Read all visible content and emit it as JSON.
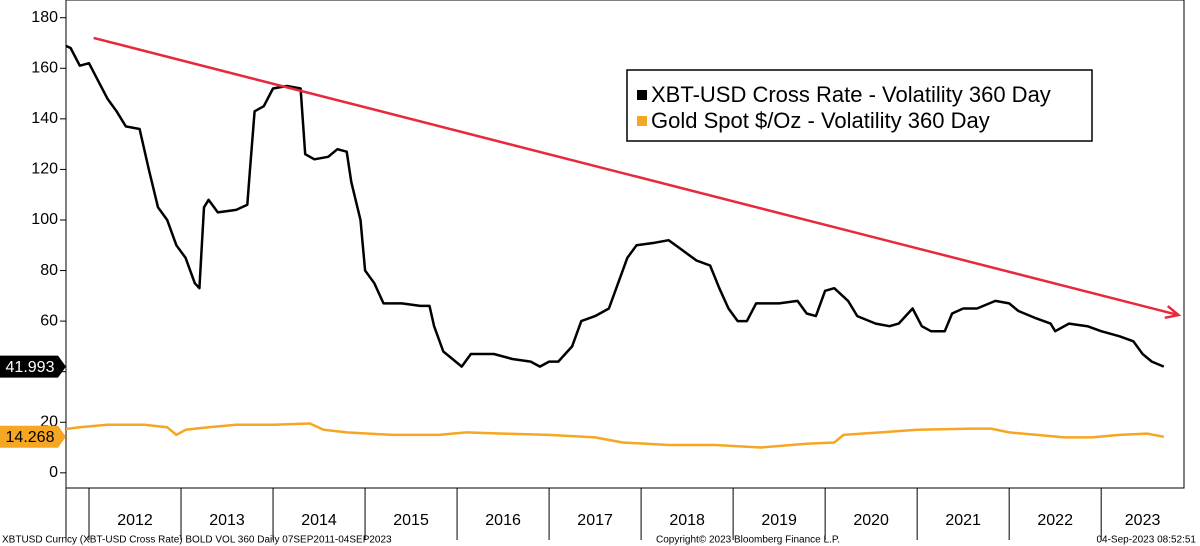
{
  "chart_data": {
    "type": "line",
    "xlim": [
      2011.75,
      2023.9
    ],
    "xticks": [
      2012,
      2013,
      2014,
      2015,
      2016,
      2017,
      2018,
      2019,
      2020,
      2021,
      2022,
      2023
    ],
    "ylim": [
      -6,
      187
    ],
    "yticks": [
      0,
      20,
      40,
      60,
      80,
      100,
      120,
      140,
      160,
      180
    ],
    "series": [
      {
        "name": "XBT-USD Cross Rate - Volatility 360 Day",
        "color": "#000000",
        "flag_text": "#ffffff",
        "x": [
          2011.68,
          2011.8,
          2011.9,
          2012.0,
          2012.1,
          2012.2,
          2012.3,
          2012.4,
          2012.55,
          2012.65,
          2012.75,
          2012.85,
          2012.95,
          2013.05,
          2013.15,
          2013.2,
          2013.25,
          2013.3,
          2013.4,
          2013.6,
          2013.72,
          2013.75,
          2013.8,
          2013.9,
          2014.0,
          2014.15,
          2014.3,
          2014.35,
          2014.45,
          2014.6,
          2014.7,
          2014.8,
          2014.85,
          2014.95,
          2015.0,
          2015.1,
          2015.2,
          2015.4,
          2015.6,
          2015.7,
          2015.75,
          2015.85,
          2015.95,
          2016.05,
          2016.15,
          2016.4,
          2016.6,
          2016.8,
          2016.9,
          2017.0,
          2017.1,
          2017.25,
          2017.35,
          2017.5,
          2017.65,
          2017.75,
          2017.85,
          2017.95,
          2018.15,
          2018.3,
          2018.45,
          2018.6,
          2018.75,
          2018.85,
          2018.95,
          2019.05,
          2019.15,
          2019.25,
          2019.5,
          2019.7,
          2019.8,
          2019.9,
          2020.0,
          2020.1,
          2020.25,
          2020.35,
          2020.55,
          2020.7,
          2020.8,
          2020.95,
          2021.05,
          2021.15,
          2021.3,
          2021.38,
          2021.5,
          2021.65,
          2021.85,
          2022.0,
          2022.1,
          2022.3,
          2022.45,
          2022.5,
          2022.65,
          2022.85,
          2023.0,
          2023.2,
          2023.35,
          2023.45,
          2023.55,
          2023.68
        ],
        "values": [
          170,
          168,
          161,
          162,
          155,
          148,
          143,
          137,
          136,
          120,
          105,
          100,
          90,
          85,
          75,
          73,
          105,
          108,
          103,
          104,
          106,
          120,
          143,
          145,
          152,
          153,
          152,
          126,
          124,
          125,
          128,
          127,
          115,
          100,
          80,
          75,
          67,
          67,
          66,
          66,
          58,
          48,
          45,
          42,
          47,
          47,
          45,
          44,
          42,
          44,
          44,
          50,
          60,
          62,
          65,
          75,
          85,
          90,
          91,
          92,
          88,
          84,
          82,
          73,
          65,
          60,
          60,
          67,
          67,
          68,
          63,
          62,
          72,
          73,
          68,
          62,
          59,
          58,
          59,
          65,
          58,
          56,
          56,
          63,
          65,
          65,
          68,
          67,
          64,
          61,
          59,
          56,
          59,
          58,
          56,
          54,
          52,
          47,
          44,
          41.993
        ]
      },
      {
        "name": "Gold Spot $/Oz - Volatility 360 Day",
        "color": "#f5a623",
        "flag_text": "#000000",
        "x": [
          2011.68,
          2011.9,
          2012.2,
          2012.6,
          2012.85,
          2012.95,
          2013.05,
          2013.3,
          2013.6,
          2014.0,
          2014.4,
          2014.55,
          2014.8,
          2015.3,
          2015.8,
          2016.1,
          2016.5,
          2017.0,
          2017.5,
          2017.8,
          2018.3,
          2018.8,
          2019.3,
          2019.8,
          2020.1,
          2020.2,
          2020.6,
          2021.0,
          2021.6,
          2021.8,
          2022.0,
          2022.3,
          2022.6,
          2022.9,
          2023.2,
          2023.5,
          2023.68
        ],
        "values": [
          17,
          18,
          19,
          19,
          18,
          15,
          17,
          18,
          19,
          19,
          19.5,
          17,
          16,
          15,
          15,
          16,
          15.5,
          15,
          14,
          12,
          11,
          11,
          10,
          11.5,
          12,
          15,
          16,
          17,
          17.5,
          17.5,
          16,
          15,
          14,
          14,
          15,
          15.5,
          14.268
        ]
      }
    ],
    "trend": {
      "x": [
        2012.05,
        2023.84
      ],
      "values": [
        172,
        62.4
      ],
      "color": "#e8283c"
    },
    "footer_left": "XBTUSD Curncy (XBT-USD Cross Rate) BOLD VOL 360  Daily 07SEP2011-04SEP2023",
    "footer_center": "Copyright© 2023 Bloomberg Finance L.P.",
    "footer_right": "04-Sep-2023 08:52:51"
  }
}
